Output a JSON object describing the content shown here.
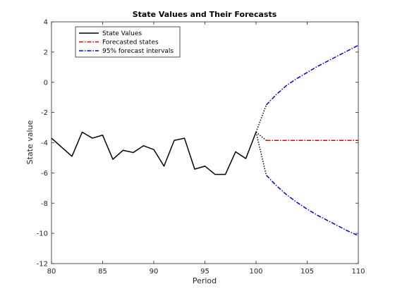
{
  "chart_data": {
    "type": "line",
    "title": "State Values and Their Forecasts",
    "xlabel": "Period",
    "ylabel": "State value",
    "xlim": [
      80,
      110
    ],
    "ylim": [
      -12,
      4
    ],
    "xticks": [
      80,
      85,
      90,
      95,
      100,
      105,
      110
    ],
    "yticks": [
      4,
      2,
      0,
      -2,
      -4,
      -6,
      -8,
      -10,
      -12
    ],
    "grid": false,
    "legend_position": "top-left",
    "series": [
      {
        "name": "State Values",
        "color": "#000000",
        "style": "solid",
        "x": [
          80,
          81,
          82,
          83,
          84,
          85,
          86,
          87,
          88,
          89,
          90,
          91,
          92,
          93,
          94,
          95,
          96,
          97,
          98,
          99,
          100
        ],
        "y": [
          -3.7,
          -4.3,
          -4.9,
          -3.3,
          -3.7,
          -3.5,
          -5.1,
          -4.5,
          -4.65,
          -4.2,
          -4.45,
          -5.55,
          -3.85,
          -3.7,
          -5.75,
          -5.55,
          -6.1,
          -6.1,
          -4.6,
          -5.05,
          -3.3
        ]
      },
      {
        "name": "Forecasted states",
        "color": "#e00000",
        "style": "dashdot",
        "x": [
          101,
          102,
          103,
          104,
          105,
          106,
          107,
          108,
          109,
          110
        ],
        "y": [
          -3.85,
          -3.85,
          -3.85,
          -3.85,
          -3.85,
          -3.85,
          -3.85,
          -3.85,
          -3.85,
          -3.85
        ]
      },
      {
        "name": "95% forecast intervals",
        "color": "#0000e0",
        "style": "dashdot",
        "x": [
          101,
          102,
          103,
          104,
          105,
          106,
          107,
          108,
          109,
          110
        ],
        "y": [
          -1.5,
          -0.8,
          -0.2,
          0.25,
          0.65,
          1.05,
          1.4,
          1.75,
          2.1,
          2.45
        ]
      },
      {
        "name": "",
        "color": "#0000e0",
        "style": "dashdot",
        "legend": false,
        "x": [
          101,
          102,
          103,
          104,
          105,
          106,
          107,
          108,
          109,
          110
        ],
        "y": [
          -6.15,
          -6.85,
          -7.45,
          -7.95,
          -8.4,
          -8.8,
          -9.15,
          -9.5,
          -9.85,
          -10.15
        ]
      }
    ],
    "connectors": [
      {
        "color": "#000000",
        "style": "dotted",
        "x": [
          100,
          101
        ],
        "y": [
          -3.3,
          -3.85
        ]
      },
      {
        "color": "#000000",
        "style": "dotted",
        "x": [
          100,
          101
        ],
        "y": [
          -3.3,
          -1.5
        ]
      },
      {
        "color": "#000000",
        "style": "dotted",
        "x": [
          100,
          101
        ],
        "y": [
          -3.3,
          -6.15
        ]
      }
    ]
  }
}
